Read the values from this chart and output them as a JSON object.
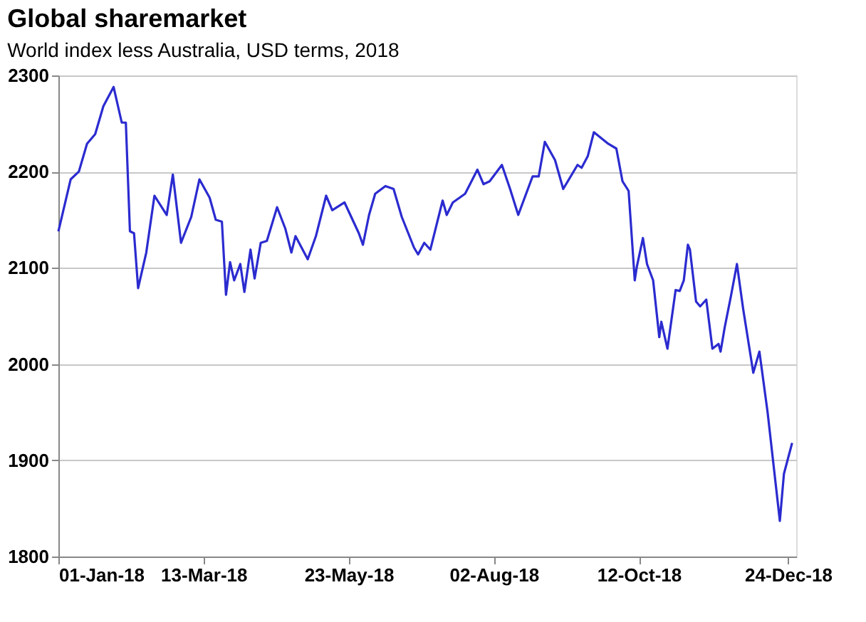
{
  "chart_data": {
    "type": "line",
    "title": "Global sharemarket",
    "subtitle": "World index less Australia, USD terms, 2018",
    "x": [
      "2018-01-01",
      "2018-01-07",
      "2018-01-11",
      "2018-01-15",
      "2018-01-19",
      "2018-01-23",
      "2018-01-28",
      "2018-02-01",
      "2018-02-03",
      "2018-02-05",
      "2018-02-07",
      "2018-02-09",
      "2018-02-13",
      "2018-02-17",
      "2018-02-23",
      "2018-02-26",
      "2018-03-02",
      "2018-03-07",
      "2018-03-11",
      "2018-03-16",
      "2018-03-19",
      "2018-03-22",
      "2018-03-24",
      "2018-03-26",
      "2018-03-28",
      "2018-03-31",
      "2018-04-02",
      "2018-04-05",
      "2018-04-07",
      "2018-04-10",
      "2018-04-13",
      "2018-04-18",
      "2018-04-22",
      "2018-04-25",
      "2018-04-27",
      "2018-05-03",
      "2018-05-07",
      "2018-05-12",
      "2018-05-15",
      "2018-05-21",
      "2018-05-28",
      "2018-05-30",
      "2018-06-02",
      "2018-06-05",
      "2018-06-10",
      "2018-06-14",
      "2018-06-18",
      "2018-06-24",
      "2018-06-26",
      "2018-06-29",
      "2018-07-02",
      "2018-07-08",
      "2018-07-10",
      "2018-07-13",
      "2018-07-19",
      "2018-07-25",
      "2018-07-28",
      "2018-07-31",
      "2018-08-06",
      "2018-08-10",
      "2018-08-14",
      "2018-08-21",
      "2018-08-24",
      "2018-08-27",
      "2018-09-01",
      "2018-09-05",
      "2018-09-12",
      "2018-09-14",
      "2018-09-17",
      "2018-09-20",
      "2018-09-27",
      "2018-10-01",
      "2018-10-04",
      "2018-10-07",
      "2018-10-10",
      "2018-10-11",
      "2018-10-14",
      "2018-10-16",
      "2018-10-19",
      "2018-10-22",
      "2018-10-23",
      "2018-10-26",
      "2018-10-30",
      "2018-11-01",
      "2018-11-03",
      "2018-11-05",
      "2018-11-06",
      "2018-11-09",
      "2018-11-11",
      "2018-11-14",
      "2018-11-17",
      "2018-11-20",
      "2018-11-21",
      "2018-11-23",
      "2018-11-26",
      "2018-11-29",
      "2018-12-02",
      "2018-12-07",
      "2018-12-10",
      "2018-12-14",
      "2018-12-20",
      "2018-12-22",
      "2018-12-26"
    ],
    "series": [
      {
        "color": "#2b2bd0",
        "values": [
          2138,
          2192,
          2200,
          2229,
          2239,
          2268,
          2288,
          2251,
          2251,
          2138,
          2136,
          2079,
          2116,
          2175,
          2155,
          2197,
          2126,
          2153,
          2192,
          2173,
          2150,
          2148,
          2072,
          2106,
          2087,
          2104,
          2075,
          2119,
          2089,
          2126,
          2128,
          2163,
          2141,
          2116,
          2133,
          2109,
          2133,
          2175,
          2160,
          2168,
          2136,
          2124,
          2155,
          2177,
          2185,
          2182,
          2153,
          2121,
          2114,
          2126,
          2119,
          2170,
          2155,
          2168,
          2177,
          2202,
          2187,
          2190,
          2207,
          2182,
          2155,
          2195,
          2195,
          2231,
          2212,
          2182,
          2207,
          2204,
          2216,
          2241,
          2229,
          2224,
          2190,
          2180,
          2087,
          2101,
          2131,
          2104,
          2087,
          2028,
          2044,
          2016,
          2077,
          2076,
          2087,
          2124,
          2119,
          2065,
          2060,
          2067,
          2016,
          2021,
          2013,
          2038,
          2070,
          2104,
          2058,
          1991,
          2013,
          1950,
          1837,
          1886,
          1918
        ]
      }
    ],
    "xlim": [
      "2018-01-01",
      "2018-12-28"
    ],
    "xticks": [
      {
        "value": "2018-01-01",
        "label": "01-Jan-18"
      },
      {
        "value": "2018-03-13",
        "label": "13-Mar-18"
      },
      {
        "value": "2018-05-23",
        "label": "23-May-18"
      },
      {
        "value": "2018-08-02",
        "label": "02-Aug-18"
      },
      {
        "value": "2018-10-12",
        "label": "12-Oct-18"
      },
      {
        "value": "2018-12-24",
        "label": "24-Dec-18"
      }
    ],
    "ylim": [
      1800,
      2300
    ],
    "yticks": [
      1800,
      1900,
      2000,
      2100,
      2200,
      2300
    ],
    "grid": "y",
    "line_style": "solid",
    "marker": "none"
  }
}
